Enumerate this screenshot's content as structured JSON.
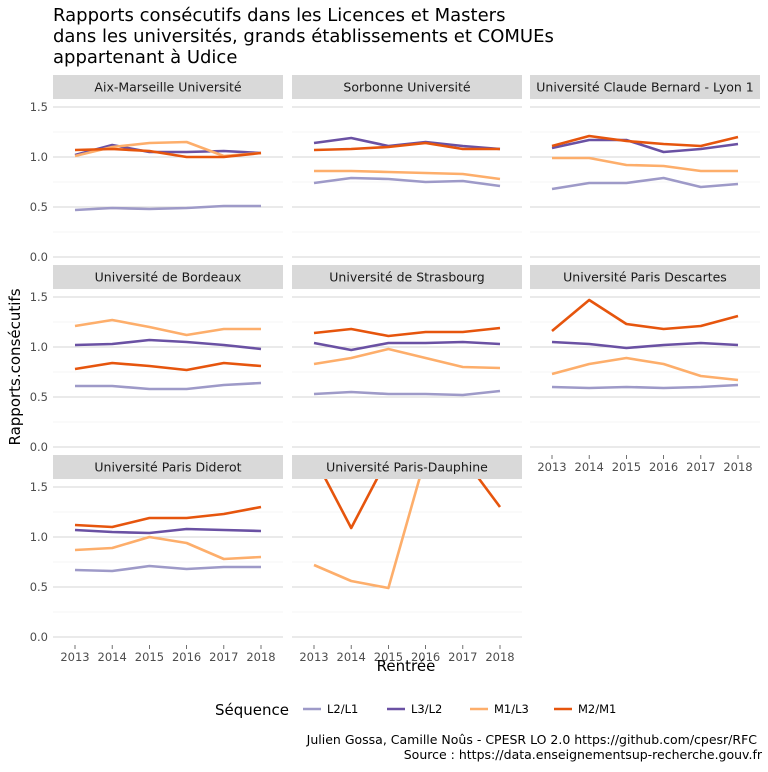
{
  "chart_data": {
    "type": "line",
    "title": [
      "Rapports consécutifs dans les Licences et Masters",
      "dans les universités, grands établissements et COMUEs",
      "appartenant à Udice"
    ],
    "xlabel": "Rentrée",
    "ylabel": "Rapports.consécutifs",
    "x": [
      2013,
      2014,
      2015,
      2016,
      2017,
      2018
    ],
    "ylim": [
      0,
      1.5
    ],
    "yticks": [
      0.0,
      0.5,
      1.0,
      1.5
    ],
    "ytick_labels": [
      "0.0",
      "0.5",
      "1.0",
      "1.5"
    ],
    "grid": true,
    "legend": {
      "title": "Séquence",
      "position": "bottom",
      "entries": [
        {
          "name": "L2/L1",
          "color": "#9e9ac8"
        },
        {
          "name": "L3/L2",
          "color": "#6a51a3"
        },
        {
          "name": "M1/L3",
          "color": "#fdae6b"
        },
        {
          "name": "M2/M1",
          "color": "#e6550d"
        }
      ]
    },
    "panels": [
      {
        "name": "Aix-Marseille Université",
        "series": {
          "L2/L1": [
            0.47,
            0.49,
            0.48,
            0.49,
            0.51,
            0.51
          ],
          "L3/L2": [
            1.02,
            1.12,
            1.05,
            1.05,
            1.06,
            1.04
          ],
          "M1/L3": [
            1.01,
            1.1,
            1.14,
            1.15,
            1.01,
            1.04
          ],
          "M2/M1": [
            1.07,
            1.08,
            1.06,
            1.0,
            1.0,
            1.04
          ]
        }
      },
      {
        "name": "Sorbonne Université",
        "series": {
          "L2/L1": [
            0.74,
            0.79,
            0.78,
            0.75,
            0.76,
            0.71
          ],
          "L3/L2": [
            1.14,
            1.19,
            1.11,
            1.15,
            1.11,
            1.08
          ],
          "M1/L3": [
            0.86,
            0.86,
            0.85,
            0.84,
            0.83,
            0.78
          ],
          "M2/M1": [
            1.07,
            1.08,
            1.1,
            1.14,
            1.08,
            1.08
          ]
        }
      },
      {
        "name": "Université Claude Bernard - Lyon 1",
        "series": {
          "L2/L1": [
            0.68,
            0.74,
            0.74,
            0.79,
            0.7,
            0.73
          ],
          "L3/L2": [
            1.09,
            1.17,
            1.17,
            1.05,
            1.08,
            1.13
          ],
          "M1/L3": [
            0.99,
            0.99,
            0.92,
            0.91,
            0.86,
            0.86
          ],
          "M2/M1": [
            1.11,
            1.21,
            1.16,
            1.13,
            1.11,
            1.2
          ]
        }
      },
      {
        "name": "Université de Bordeaux",
        "series": {
          "L2/L1": [
            0.61,
            0.61,
            0.58,
            0.58,
            0.62,
            0.64
          ],
          "L3/L2": [
            1.02,
            1.03,
            1.07,
            1.05,
            1.02,
            0.98
          ],
          "M1/L3": [
            1.21,
            1.27,
            1.2,
            1.12,
            1.18,
            1.18
          ],
          "M2/M1": [
            0.78,
            0.84,
            0.81,
            0.77,
            0.84,
            0.81
          ]
        }
      },
      {
        "name": "Université de Strasbourg",
        "series": {
          "L2/L1": [
            0.53,
            0.55,
            0.53,
            0.53,
            0.52,
            0.56
          ],
          "L3/L2": [
            1.04,
            0.97,
            1.04,
            1.04,
            1.05,
            1.03
          ],
          "M1/L3": [
            0.83,
            0.89,
            0.98,
            0.89,
            0.8,
            0.79
          ],
          "M2/M1": [
            1.14,
            1.18,
            1.11,
            1.15,
            1.15,
            1.19
          ]
        }
      },
      {
        "name": "Université Paris Descartes",
        "series": {
          "L2/L1": [
            0.6,
            0.59,
            0.6,
            0.59,
            0.6,
            0.62
          ],
          "L3/L2": [
            1.05,
            1.03,
            0.99,
            1.02,
            1.04,
            1.02
          ],
          "M1/L3": [
            0.73,
            0.83,
            0.89,
            0.83,
            0.71,
            0.67
          ],
          "M2/M1": [
            1.16,
            1.47,
            1.23,
            1.18,
            1.21,
            1.31
          ]
        }
      },
      {
        "name": "Université Paris Diderot",
        "series": {
          "L2/L1": [
            0.67,
            0.66,
            0.71,
            0.68,
            0.7,
            0.7
          ],
          "L3/L2": [
            1.07,
            1.05,
            1.04,
            1.08,
            1.07,
            1.06
          ],
          "M1/L3": [
            0.87,
            0.89,
            1.0,
            0.94,
            0.78,
            0.8
          ],
          "M2/M1": [
            1.12,
            1.1,
            1.19,
            1.19,
            1.23,
            1.3
          ]
        }
      },
      {
        "name": "Université Paris-Dauphine",
        "series": {
          "L2/L1": [
            null,
            null,
            null,
            null,
            null,
            null
          ],
          "L3/L2": [
            null,
            null,
            null,
            null,
            null,
            null
          ],
          "M1/L3": [
            0.72,
            0.56,
            0.49,
            1.8,
            1.8,
            1.8
          ],
          "M2/M1": [
            1.8,
            1.09,
            1.8,
            1.8,
            1.8,
            1.3
          ]
        }
      }
    ]
  },
  "caption": [
    "Julien Gossa, Camille Noûs - CPESR LO 2.0 https://github.com/cpesr/RFC",
    "Source : https://data.enseignementsup-recherche.gouv.fr"
  ]
}
